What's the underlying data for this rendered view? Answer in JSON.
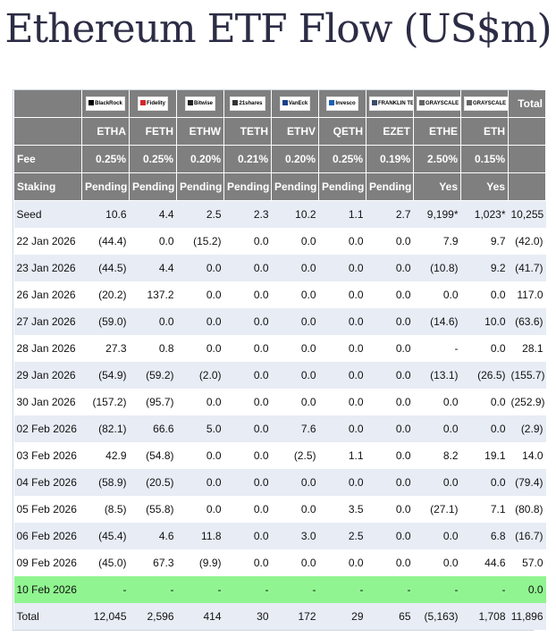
{
  "title": "Ethereum ETF Flow (US$m)",
  "issuers": [
    {
      "logo": "BlackRock",
      "ticker": "ETHA",
      "fee": "0.25%",
      "staking": "Pending",
      "icon": "blackrock-logo"
    },
    {
      "logo": "Fidelity",
      "ticker": "FETH",
      "fee": "0.25%",
      "staking": "Pending",
      "icon": "fidelity-logo"
    },
    {
      "logo": "Bitwise",
      "ticker": "ETHW",
      "fee": "0.20%",
      "staking": "Pending",
      "icon": "bitwise-logo"
    },
    {
      "logo": "21shares",
      "ticker": "TETH",
      "fee": "0.21%",
      "staking": "Pending",
      "icon": "21shares-logo"
    },
    {
      "logo": "VanEck",
      "ticker": "ETHV",
      "fee": "0.20%",
      "staking": "Pending",
      "icon": "vaneck-logo"
    },
    {
      "logo": "Invesco",
      "ticker": "QETH",
      "fee": "0.25%",
      "staking": "Pending",
      "icon": "invesco-logo"
    },
    {
      "logo": "FRANKLIN TEMPLETON",
      "ticker": "EZET",
      "fee": "0.19%",
      "staking": "Pending",
      "icon": "franklin-logo"
    },
    {
      "logo": "GRAYSCALE",
      "ticker": "ETHE",
      "fee": "2.50%",
      "staking": "Yes",
      "icon": "grayscale-logo"
    },
    {
      "logo": "GRAYSCALE",
      "ticker": "ETH",
      "fee": "0.15%",
      "staking": "Yes",
      "icon": "grayscale-logo"
    }
  ],
  "header_labels": {
    "total": "Total",
    "fee": "Fee",
    "staking": "Staking"
  },
  "rows": [
    {
      "label": "Seed",
      "values": [
        "10.6",
        "4.4",
        "2.5",
        "2.3",
        "10.2",
        "1.1",
        "2.7",
        "9,199*",
        "1,023*",
        "10,255"
      ]
    },
    {
      "label": "22 Jan 2026",
      "values": [
        "(44.4)",
        "0.0",
        "(15.2)",
        "0.0",
        "0.0",
        "0.0",
        "0.0",
        "7.9",
        "9.7",
        "(42.0)"
      ]
    },
    {
      "label": "23 Jan 2026",
      "values": [
        "(44.5)",
        "4.4",
        "0.0",
        "0.0",
        "0.0",
        "0.0",
        "0.0",
        "(10.8)",
        "9.2",
        "(41.7)"
      ]
    },
    {
      "label": "26 Jan 2026",
      "values": [
        "(20.2)",
        "137.2",
        "0.0",
        "0.0",
        "0.0",
        "0.0",
        "0.0",
        "0.0",
        "0.0",
        "117.0"
      ]
    },
    {
      "label": "27 Jan 2026",
      "values": [
        "(59.0)",
        "0.0",
        "0.0",
        "0.0",
        "0.0",
        "0.0",
        "0.0",
        "(14.6)",
        "10.0",
        "(63.6)"
      ]
    },
    {
      "label": "28 Jan 2026",
      "values": [
        "27.3",
        "0.8",
        "0.0",
        "0.0",
        "0.0",
        "0.0",
        "0.0",
        "-",
        "0.0",
        "28.1"
      ]
    },
    {
      "label": "29 Jan 2026",
      "values": [
        "(54.9)",
        "(59.2)",
        "(2.0)",
        "0.0",
        "0.0",
        "0.0",
        "0.0",
        "(13.1)",
        "(26.5)",
        "(155.7)"
      ]
    },
    {
      "label": "30 Jan 2026",
      "values": [
        "(157.2)",
        "(95.7)",
        "0.0",
        "0.0",
        "0.0",
        "0.0",
        "0.0",
        "0.0",
        "0.0",
        "(252.9)"
      ]
    },
    {
      "label": "02 Feb 2026",
      "values": [
        "(82.1)",
        "66.6",
        "5.0",
        "0.0",
        "7.6",
        "0.0",
        "0.0",
        "0.0",
        "0.0",
        "(2.9)"
      ]
    },
    {
      "label": "03 Feb 2026",
      "values": [
        "42.9",
        "(54.8)",
        "0.0",
        "0.0",
        "(2.5)",
        "1.1",
        "0.0",
        "8.2",
        "19.1",
        "14.0"
      ]
    },
    {
      "label": "04 Feb 2026",
      "values": [
        "(58.9)",
        "(20.5)",
        "0.0",
        "0.0",
        "0.0",
        "0.0",
        "0.0",
        "0.0",
        "0.0",
        "(79.4)"
      ]
    },
    {
      "label": "05 Feb 2026",
      "values": [
        "(8.5)",
        "(55.8)",
        "0.0",
        "0.0",
        "0.0",
        "3.5",
        "0.0",
        "(27.1)",
        "7.1",
        "(80.8)"
      ]
    },
    {
      "label": "06 Feb 2026",
      "values": [
        "(45.4)",
        "4.6",
        "11.8",
        "0.0",
        "3.0",
        "2.5",
        "0.0",
        "0.0",
        "6.8",
        "(16.7)"
      ]
    },
    {
      "label": "09 Feb 2026",
      "values": [
        "(45.0)",
        "67.3",
        "(9.9)",
        "0.0",
        "0.0",
        "0.0",
        "0.0",
        "0.0",
        "44.6",
        "57.0"
      ]
    },
    {
      "label": "10 Feb 2026",
      "values": [
        "-",
        "-",
        "-",
        "-",
        "-",
        "-",
        "-",
        "-",
        "-",
        "0.0"
      ],
      "highlight": true
    },
    {
      "label": "Total",
      "values": [
        "12,045",
        "2,596",
        "414",
        "30",
        "172",
        "29",
        "65",
        "(5,163)",
        "1,708",
        "11,896"
      ],
      "total": true
    }
  ],
  "colors": {
    "header_bg": "#7f7f7f",
    "row_alt": "#e7ecf5",
    "highlight": "#90f590",
    "negative": "#d11f1f",
    "title": "#2c2c46"
  }
}
